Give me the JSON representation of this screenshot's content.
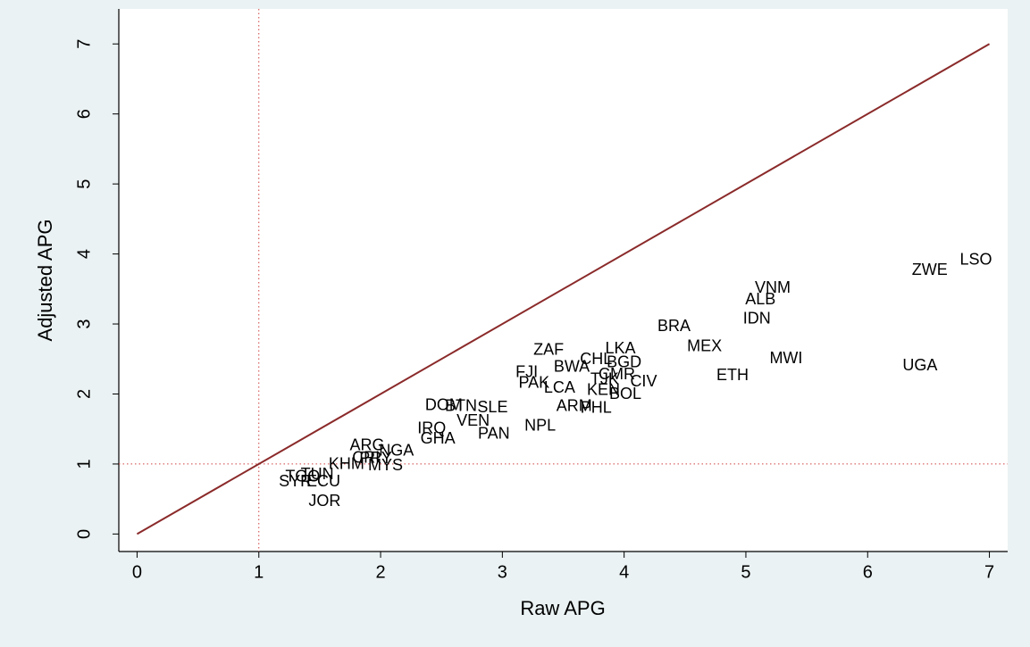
{
  "chart_data": {
    "type": "scatter",
    "x_label": "Raw APG",
    "y_label": "Adjusted APG",
    "xlim": [
      -0.15,
      7.15
    ],
    "ylim": [
      -0.25,
      7.5
    ],
    "xticks": [
      0,
      1,
      2,
      3,
      4,
      5,
      6,
      7
    ],
    "yticks": [
      0,
      1,
      2,
      3,
      4,
      5,
      6,
      7
    ],
    "point_labels": [
      "LSO",
      "ZWE",
      "VNM",
      "ALB",
      "IDN",
      "BRA",
      "MEX",
      "MWI",
      "UGA",
      "ETH",
      "LKA",
      "ZAF",
      "CHL",
      "BWA",
      "BGD",
      "FJI",
      "CMR",
      "TJK",
      "CIV",
      "PAK",
      "LCA",
      "KEN",
      "BOL",
      "ARM",
      "PHL",
      "DOM",
      "BTN",
      "SLE",
      "VEN",
      "IRQ",
      "NPL",
      "PAN",
      "GHA",
      "ARG",
      "NGA",
      "CRI",
      "PRY",
      "KHM",
      "MYS",
      "TGO",
      "TUN",
      "SYR",
      "ECU",
      "JOR"
    ],
    "x": [
      6.89,
      6.51,
      5.22,
      5.12,
      5.09,
      4.41,
      4.66,
      5.33,
      6.43,
      4.89,
      3.97,
      3.38,
      3.77,
      3.57,
      4.0,
      3.2,
      3.94,
      3.84,
      4.16,
      3.26,
      3.47,
      3.83,
      4.01,
      3.59,
      3.77,
      2.52,
      2.66,
      2.92,
      2.76,
      2.42,
      3.31,
      2.93,
      2.47,
      1.89,
      2.13,
      1.88,
      1.96,
      1.72,
      2.04,
      1.36,
      1.48,
      1.3,
      1.53,
      1.54
    ],
    "values": [
      3.91,
      3.76,
      3.51,
      3.34,
      3.07,
      2.96,
      2.67,
      2.5,
      2.4,
      2.26,
      2.64,
      2.62,
      2.49,
      2.38,
      2.44,
      2.3,
      2.27,
      2.2,
      2.17,
      2.15,
      2.08,
      2.05,
      1.99,
      1.82,
      1.79,
      1.83,
      1.82,
      1.8,
      1.61,
      1.5,
      1.54,
      1.42,
      1.35,
      1.26,
      1.18,
      1.08,
      1.07,
      0.99,
      0.97,
      0.81,
      0.84,
      0.74,
      0.74,
      0.46
    ],
    "color": "#000000",
    "diagonal": {
      "x": [
        0,
        7
      ],
      "y": [
        0,
        7
      ],
      "color": "#8b2a2a"
    },
    "xline": 1,
    "yline": 1,
    "refline_color": "#d04040"
  }
}
